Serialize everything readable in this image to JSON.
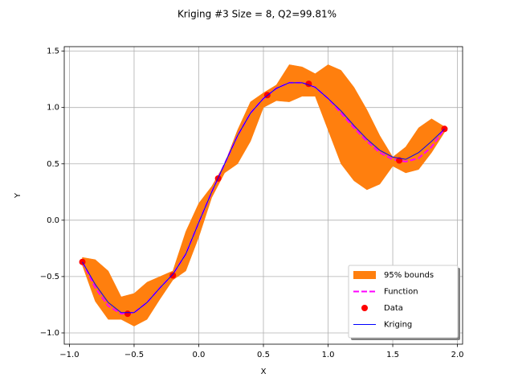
{
  "chart_data": {
    "type": "line",
    "title": "Kriging #3 Size = 8, Q2=99.81%",
    "x_label": "X",
    "y_label": "Y",
    "xlim": [
      -1.04,
      2.04
    ],
    "ylim": [
      -1.1,
      1.54
    ],
    "xticks": [
      {
        "value": -1.0,
        "label": "−1.0"
      },
      {
        "value": -0.5,
        "label": "−0.5"
      },
      {
        "value": 0.0,
        "label": "0.0"
      },
      {
        "value": 0.5,
        "label": "0.5"
      },
      {
        "value": 1.0,
        "label": "1.0"
      },
      {
        "value": 1.5,
        "label": "1.5"
      },
      {
        "value": 2.0,
        "label": "2.0"
      }
    ],
    "yticks": [
      {
        "value": -1.0,
        "label": "−1.0"
      },
      {
        "value": -0.5,
        "label": "−0.5"
      },
      {
        "value": 0.0,
        "label": "0.0"
      },
      {
        "value": 0.5,
        "label": "0.5"
      },
      {
        "value": 1.0,
        "label": "1.0"
      },
      {
        "value": 1.5,
        "label": "1.5"
      }
    ],
    "grid": true,
    "legend": "lower right",
    "x": [
      -0.9,
      -0.8,
      -0.7,
      -0.6,
      -0.5,
      -0.4,
      -0.3,
      -0.2,
      -0.1,
      0.0,
      0.1,
      0.2,
      0.3,
      0.4,
      0.5,
      0.6,
      0.7,
      0.8,
      0.9,
      1.0,
      1.1,
      1.2,
      1.3,
      1.4,
      1.5,
      1.6,
      1.7,
      1.8,
      1.9
    ],
    "series": [
      {
        "name": "95% bounds",
        "style": "band",
        "color": "#ff7f0e",
        "upper": [
          -0.33,
          -0.35,
          -0.45,
          -0.68,
          -0.65,
          -0.55,
          -0.5,
          -0.45,
          -0.1,
          0.15,
          0.3,
          0.5,
          0.8,
          1.05,
          1.13,
          1.2,
          1.38,
          1.36,
          1.3,
          1.38,
          1.33,
          1.18,
          0.98,
          0.75,
          0.56,
          0.65,
          0.82,
          0.9,
          0.83
        ],
        "lower": [
          -0.4,
          -0.72,
          -0.88,
          -0.88,
          -0.94,
          -0.88,
          -0.7,
          -0.53,
          -0.45,
          -0.15,
          0.2,
          0.42,
          0.5,
          0.7,
          1.0,
          1.06,
          1.05,
          1.1,
          1.1,
          0.8,
          0.5,
          0.35,
          0.27,
          0.32,
          0.48,
          0.42,
          0.45,
          0.6,
          0.78
        ]
      },
      {
        "name": "Function",
        "style": "dashed",
        "color": "#ff00ff",
        "values": [
          -0.37,
          -0.6,
          -0.76,
          -0.83,
          -0.82,
          -0.73,
          -0.6,
          -0.48,
          -0.3,
          -0.02,
          0.25,
          0.5,
          0.75,
          0.95,
          1.08,
          1.17,
          1.22,
          1.22,
          1.18,
          1.08,
          0.95,
          0.82,
          0.7,
          0.6,
          0.54,
          0.52,
          0.55,
          0.65,
          0.81
        ]
      },
      {
        "name": "Data",
        "style": "marker",
        "color": "#ff0000",
        "x": [
          -0.9,
          -0.55,
          -0.2,
          0.15,
          0.53,
          0.85,
          1.55,
          1.9
        ],
        "values": [
          -0.37,
          -0.83,
          -0.49,
          0.37,
          1.11,
          1.21,
          0.53,
          0.81
        ]
      },
      {
        "name": "Kriging",
        "style": "line",
        "color": "#0000ff",
        "values": [
          -0.37,
          -0.57,
          -0.73,
          -0.82,
          -0.82,
          -0.73,
          -0.6,
          -0.48,
          -0.3,
          -0.02,
          0.25,
          0.5,
          0.75,
          0.95,
          1.08,
          1.17,
          1.22,
          1.22,
          1.18,
          1.08,
          0.97,
          0.84,
          0.72,
          0.62,
          0.56,
          0.54,
          0.6,
          0.7,
          0.81
        ]
      }
    ]
  }
}
